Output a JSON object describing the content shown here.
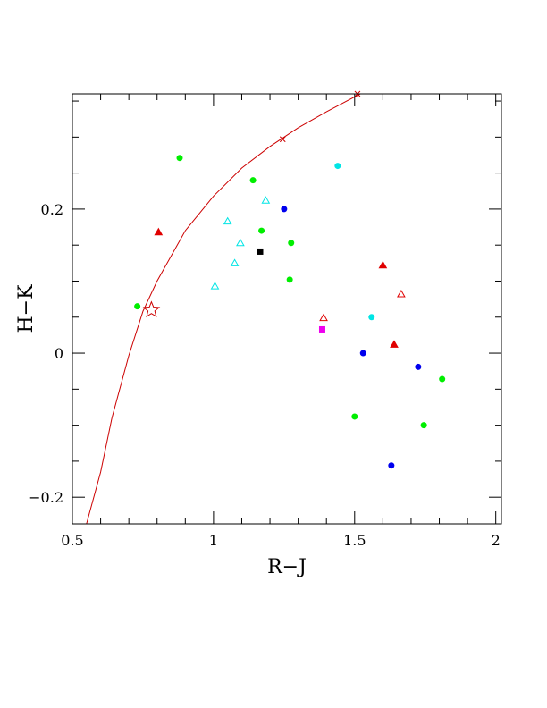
{
  "chart_data": {
    "type": "scatter",
    "xlabel": "R−J",
    "ylabel": "H−K",
    "xlim": [
      0.5,
      2.02
    ],
    "ylim": [
      -0.237,
      0.36
    ],
    "x_ticks": [
      {
        "value": 0.5,
        "label": "0.5"
      },
      {
        "value": 1.0,
        "label": "1"
      },
      {
        "value": 1.5,
        "label": "1.5"
      },
      {
        "value": 2.0,
        "label": "2"
      }
    ],
    "y_ticks": [
      {
        "value": -0.2,
        "label": "−0.2"
      },
      {
        "value": 0.0,
        "label": "0"
      },
      {
        "value": 0.2,
        "label": "0.2"
      }
    ],
    "grid": false,
    "legend": "none",
    "colors": {
      "green": "#00ee00",
      "cyan": "#00e5e5",
      "blue": "#0000ee",
      "red": "#e00000",
      "black": "#000000",
      "magenta": "#ee00ee",
      "curve": "#cc0000"
    },
    "curve": {
      "color": "#cc0000",
      "points": [
        [
          0.55,
          -0.237
        ],
        [
          0.6,
          -0.165
        ],
        [
          0.64,
          -0.09
        ],
        [
          0.7,
          -0.003
        ],
        [
          0.75,
          0.058
        ],
        [
          0.8,
          0.1
        ],
        [
          0.9,
          0.17
        ],
        [
          1.0,
          0.218
        ],
        [
          1.1,
          0.257
        ],
        [
          1.2,
          0.287
        ],
        [
          1.3,
          0.313
        ],
        [
          1.4,
          0.335
        ],
        [
          1.52,
          0.36
        ]
      ],
      "cross_markers": [
        [
          1.245,
          0.297
        ],
        [
          1.51,
          0.36
        ]
      ]
    },
    "star_marker": {
      "x": 0.78,
      "y": 0.06,
      "color": "#cc0000"
    },
    "series": [
      {
        "marker": "filled-circle",
        "color": "#00ee00",
        "points": [
          [
            0.88,
            0.271
          ],
          [
            0.73,
            0.065
          ],
          [
            1.14,
            0.24
          ],
          [
            1.17,
            0.17
          ],
          [
            1.275,
            0.153
          ],
          [
            1.27,
            0.102
          ],
          [
            1.5,
            -0.088
          ],
          [
            1.745,
            -0.1
          ],
          [
            1.81,
            -0.036
          ]
        ]
      },
      {
        "marker": "filled-circle",
        "color": "#00e5e5",
        "points": [
          [
            1.44,
            0.26
          ],
          [
            1.56,
            0.05
          ]
        ]
      },
      {
        "marker": "filled-circle",
        "color": "#0000ee",
        "points": [
          [
            1.25,
            0.2
          ],
          [
            1.53,
            0.0
          ],
          [
            1.725,
            -0.019
          ],
          [
            1.63,
            -0.156
          ]
        ]
      },
      {
        "marker": "open-triangle",
        "color": "#00e5e5",
        "points": [
          [
            1.05,
            0.183
          ],
          [
            1.185,
            0.212
          ],
          [
            1.095,
            0.153
          ],
          [
            1.075,
            0.125
          ],
          [
            1.005,
            0.093
          ]
        ]
      },
      {
        "marker": "filled-triangle",
        "color": "#e00000",
        "points": [
          [
            0.805,
            0.168
          ],
          [
            1.6,
            0.122
          ],
          [
            1.64,
            0.012
          ]
        ]
      },
      {
        "marker": "open-triangle",
        "color": "#e00000",
        "points": [
          [
            1.665,
            0.082
          ],
          [
            1.39,
            0.049
          ]
        ]
      },
      {
        "marker": "filled-square",
        "color": "#000000",
        "points": [
          [
            1.165,
            0.141
          ]
        ]
      },
      {
        "marker": "filled-square",
        "color": "#ee00ee",
        "points": [
          [
            1.385,
            0.033
          ]
        ]
      }
    ]
  }
}
